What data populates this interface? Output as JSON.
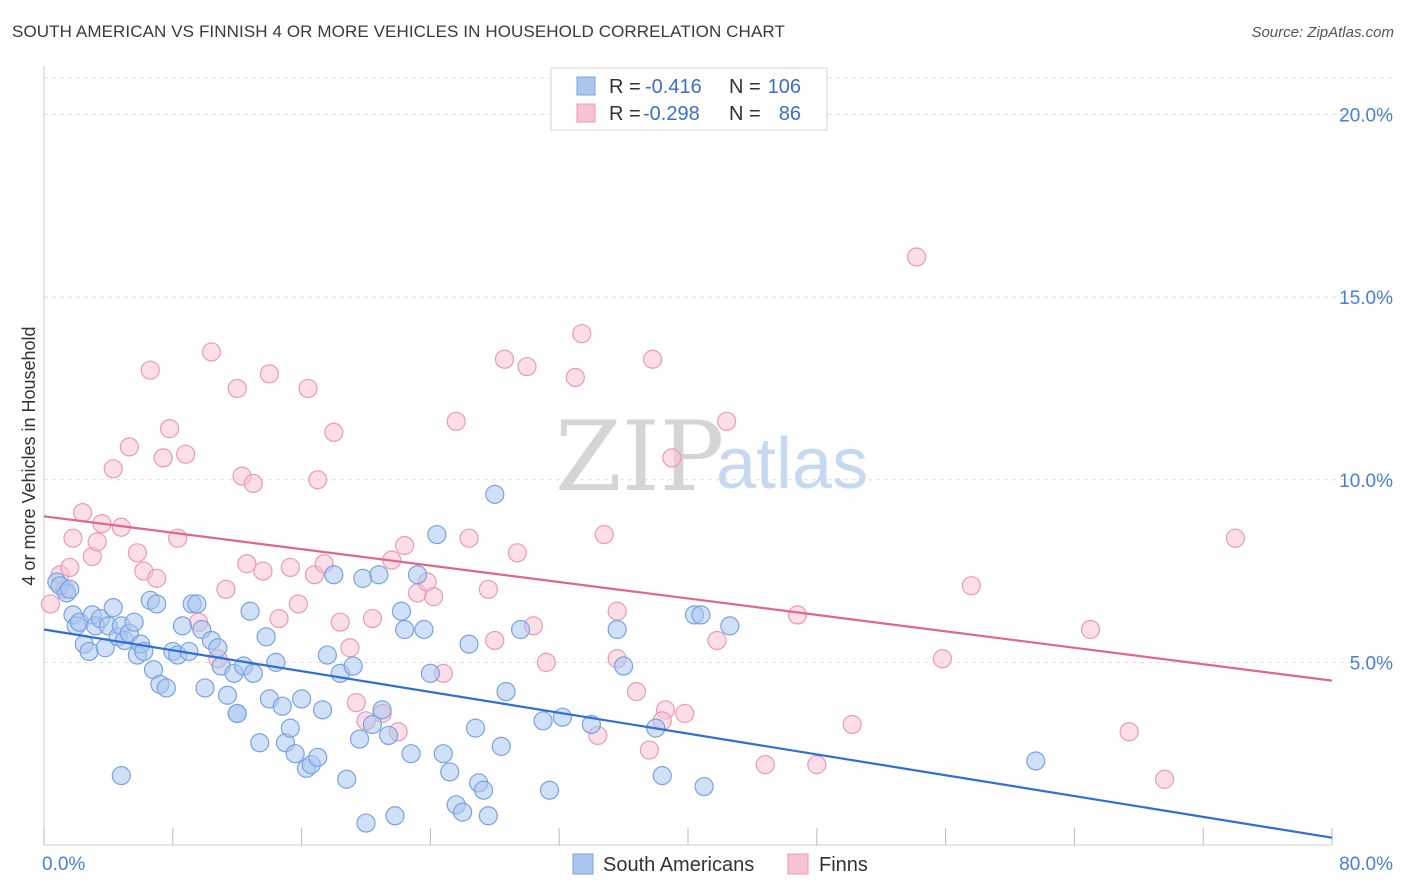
{
  "header": {
    "title": "SOUTH AMERICAN VS FINNISH 4 OR MORE VEHICLES IN HOUSEHOLD CORRELATION CHART",
    "source": "Source: ZipAtlas.com"
  },
  "watermark": {
    "part1": "ZIP",
    "part2": "atlas"
  },
  "legend_top": {
    "rows": [
      {
        "r_label": "R =",
        "r_value": "-0.416",
        "n_label": "N =",
        "n_value": "106",
        "color": "#8fb4ea"
      },
      {
        "r_label": "R =",
        "r_value": "-0.298",
        "n_label": "N =",
        "n_value": "86",
        "color": "#f0a3bd"
      }
    ]
  },
  "legend_bottom": {
    "items": [
      {
        "label": "South Americans",
        "color": "#8fb4ea"
      },
      {
        "label": "Finns",
        "color": "#f0a3bd"
      }
    ]
  },
  "colors": {
    "blue_fill": "#a9c6f0",
    "blue_stroke": "#7aa2e0",
    "blue_line": "#2f6fd4",
    "pink_fill": "#f7c2d3",
    "pink_stroke": "#ea9ab6",
    "pink_line": "#e0668e",
    "grid": "#dddddd",
    "tick_text": "#4a7fd0"
  },
  "chart_data": {
    "type": "scatter",
    "title": "SOUTH AMERICAN VS FINNISH 4 OR MORE VEHICLES IN HOUSEHOLD CORRELATION CHART",
    "xlabel": "",
    "ylabel": "4 or more Vehicles in Household",
    "xlim": [
      0,
      80
    ],
    "ylim": [
      0,
      21
    ],
    "x_tick_labels": [
      "0.0%",
      "80.0%"
    ],
    "y_ticks": [
      5,
      10,
      15,
      20
    ],
    "y_tick_labels": [
      "5.0%",
      "10.0%",
      "15.0%",
      "20.0%"
    ],
    "grid": true,
    "legend_position": "top-center",
    "series": [
      {
        "name": "South Americans",
        "r": -0.416,
        "n": 106,
        "trend": {
          "x": [
            0,
            80
          ],
          "y": [
            5.9,
            0.2
          ]
        },
        "points": [
          [
            0.8,
            7.2
          ],
          [
            1.0,
            7.1
          ],
          [
            1.4,
            6.9
          ],
          [
            1.6,
            7.0
          ],
          [
            1.8,
            6.3
          ],
          [
            2.0,
            6.0
          ],
          [
            2.2,
            6.1
          ],
          [
            2.5,
            5.5
          ],
          [
            2.8,
            5.3
          ],
          [
            3.0,
            6.3
          ],
          [
            3.2,
            6.0
          ],
          [
            3.5,
            6.2
          ],
          [
            3.8,
            5.4
          ],
          [
            4.0,
            6.0
          ],
          [
            4.3,
            6.5
          ],
          [
            4.6,
            5.7
          ],
          [
            4.8,
            6.0
          ],
          [
            5.0,
            5.6
          ],
          [
            5.3,
            5.8
          ],
          [
            5.6,
            6.1
          ],
          [
            5.8,
            5.2
          ],
          [
            6.0,
            5.5
          ],
          [
            6.2,
            5.3
          ],
          [
            6.6,
            6.7
          ],
          [
            6.8,
            4.8
          ],
          [
            7.0,
            6.6
          ],
          [
            7.2,
            4.4
          ],
          [
            7.6,
            4.3
          ],
          [
            8.0,
            5.3
          ],
          [
            8.3,
            5.2
          ],
          [
            8.6,
            6.0
          ],
          [
            9.0,
            5.3
          ],
          [
            9.2,
            6.6
          ],
          [
            9.5,
            6.6
          ],
          [
            9.8,
            5.9
          ],
          [
            10.0,
            4.3
          ],
          [
            10.4,
            5.6
          ],
          [
            10.8,
            5.4
          ],
          [
            11.0,
            4.9
          ],
          [
            11.4,
            4.1
          ],
          [
            11.8,
            4.7
          ],
          [
            12.0,
            3.6
          ],
          [
            12.4,
            4.9
          ],
          [
            12.8,
            6.4
          ],
          [
            13.0,
            4.7
          ],
          [
            13.4,
            2.8
          ],
          [
            13.8,
            5.7
          ],
          [
            14.0,
            4.0
          ],
          [
            14.4,
            5.0
          ],
          [
            14.8,
            3.8
          ],
          [
            15.0,
            2.8
          ],
          [
            15.3,
            3.2
          ],
          [
            15.6,
            2.5
          ],
          [
            16.0,
            4.0
          ],
          [
            16.3,
            2.1
          ],
          [
            16.6,
            2.2
          ],
          [
            17.0,
            2.4
          ],
          [
            17.3,
            3.7
          ],
          [
            17.6,
            5.2
          ],
          [
            18.0,
            7.4
          ],
          [
            18.4,
            4.7
          ],
          [
            18.8,
            1.8
          ],
          [
            19.2,
            4.9
          ],
          [
            19.6,
            2.9
          ],
          [
            19.8,
            7.3
          ],
          [
            20.0,
            0.6
          ],
          [
            20.4,
            3.3
          ],
          [
            20.8,
            7.4
          ],
          [
            21.0,
            3.7
          ],
          [
            21.4,
            3.0
          ],
          [
            21.8,
            0.8
          ],
          [
            22.2,
            6.4
          ],
          [
            22.4,
            5.9
          ],
          [
            22.8,
            2.5
          ],
          [
            23.2,
            7.4
          ],
          [
            23.6,
            5.9
          ],
          [
            24.0,
            4.7
          ],
          [
            24.4,
            8.5
          ],
          [
            24.8,
            2.5
          ],
          [
            25.2,
            2.0
          ],
          [
            25.6,
            1.1
          ],
          [
            26.0,
            0.9
          ],
          [
            26.4,
            5.5
          ],
          [
            26.8,
            3.2
          ],
          [
            27.0,
            1.7
          ],
          [
            27.3,
            1.5
          ],
          [
            27.6,
            0.8
          ],
          [
            28.0,
            9.6
          ],
          [
            28.4,
            2.7
          ],
          [
            28.7,
            4.2
          ],
          [
            29.6,
            5.9
          ],
          [
            31.0,
            3.4
          ],
          [
            31.4,
            1.5
          ],
          [
            32.2,
            3.5
          ],
          [
            34.0,
            3.3
          ],
          [
            35.6,
            5.9
          ],
          [
            36.0,
            4.9
          ],
          [
            38.0,
            3.2
          ],
          [
            38.4,
            1.9
          ],
          [
            40.4,
            6.3
          ],
          [
            40.8,
            6.3
          ],
          [
            41.0,
            1.6
          ],
          [
            42.6,
            6.0
          ],
          [
            61.6,
            2.3
          ],
          [
            4.8,
            1.9
          ],
          [
            12.0,
            3.6
          ]
        ]
      },
      {
        "name": "Finns",
        "r": -0.298,
        "n": 86,
        "trend": {
          "x": [
            0,
            80
          ],
          "y": [
            9.0,
            4.5
          ]
        },
        "points": [
          [
            0.4,
            6.6
          ],
          [
            1.0,
            7.4
          ],
          [
            1.3,
            7.0
          ],
          [
            1.8,
            8.4
          ],
          [
            2.4,
            9.1
          ],
          [
            3.0,
            7.9
          ],
          [
            3.3,
            8.3
          ],
          [
            3.6,
            8.8
          ],
          [
            4.3,
            10.3
          ],
          [
            4.8,
            8.7
          ],
          [
            5.3,
            10.9
          ],
          [
            5.8,
            8.0
          ],
          [
            6.2,
            7.5
          ],
          [
            6.6,
            13.0
          ],
          [
            7.0,
            7.3
          ],
          [
            7.4,
            10.6
          ],
          [
            7.8,
            11.4
          ],
          [
            8.3,
            8.4
          ],
          [
            8.8,
            10.7
          ],
          [
            9.6,
            6.1
          ],
          [
            10.4,
            13.5
          ],
          [
            10.8,
            5.1
          ],
          [
            11.3,
            7.0
          ],
          [
            12.0,
            12.5
          ],
          [
            12.3,
            10.1
          ],
          [
            12.6,
            7.7
          ],
          [
            13.0,
            9.9
          ],
          [
            13.6,
            7.5
          ],
          [
            14.0,
            12.9
          ],
          [
            14.6,
            6.2
          ],
          [
            15.3,
            7.6
          ],
          [
            15.8,
            6.6
          ],
          [
            16.4,
            12.5
          ],
          [
            16.8,
            7.4
          ],
          [
            17.0,
            10.0
          ],
          [
            17.4,
            7.7
          ],
          [
            18.0,
            11.3
          ],
          [
            18.4,
            6.1
          ],
          [
            19.0,
            5.4
          ],
          [
            19.4,
            3.9
          ],
          [
            20.0,
            3.4
          ],
          [
            20.4,
            6.2
          ],
          [
            21.0,
            3.6
          ],
          [
            21.6,
            7.8
          ],
          [
            22.0,
            3.1
          ],
          [
            22.4,
            8.2
          ],
          [
            23.2,
            6.9
          ],
          [
            23.8,
            7.2
          ],
          [
            24.2,
            6.8
          ],
          [
            24.8,
            4.7
          ],
          [
            25.6,
            11.6
          ],
          [
            26.4,
            8.4
          ],
          [
            27.6,
            7.0
          ],
          [
            28.0,
            5.6
          ],
          [
            28.6,
            13.3
          ],
          [
            29.4,
            8.0
          ],
          [
            30.0,
            13.1
          ],
          [
            30.4,
            6.0
          ],
          [
            31.2,
            5.0
          ],
          [
            33.0,
            12.8
          ],
          [
            33.4,
            14.0
          ],
          [
            34.4,
            3.0
          ],
          [
            34.8,
            8.5
          ],
          [
            35.6,
            6.4
          ],
          [
            35.6,
            5.1
          ],
          [
            36.8,
            4.2
          ],
          [
            37.6,
            2.6
          ],
          [
            37.8,
            13.3
          ],
          [
            38.6,
            3.7
          ],
          [
            38.4,
            3.4
          ],
          [
            39.0,
            10.6
          ],
          [
            39.8,
            3.6
          ],
          [
            41.8,
            5.6
          ],
          [
            42.4,
            11.6
          ],
          [
            44.8,
            2.2
          ],
          [
            46.8,
            6.3
          ],
          [
            48.0,
            2.2
          ],
          [
            50.2,
            3.3
          ],
          [
            54.2,
            16.1
          ],
          [
            55.8,
            5.1
          ],
          [
            57.6,
            7.1
          ],
          [
            65.0,
            5.9
          ],
          [
            67.4,
            3.1
          ],
          [
            69.6,
            1.8
          ],
          [
            74.0,
            8.4
          ],
          [
            1.6,
            7.6
          ]
        ]
      }
    ]
  }
}
